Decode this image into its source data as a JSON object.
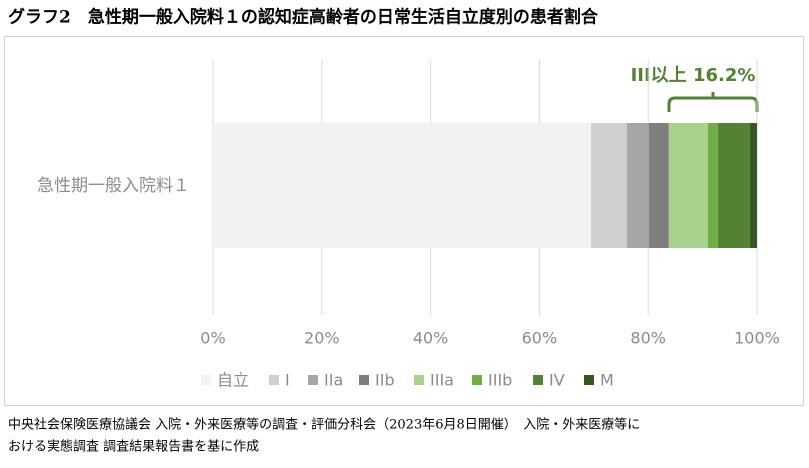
{
  "chart_data": {
    "type": "stacked-bar-horizontal",
    "title": "グラフ2　急性期一般入院料１の認知症高齢者の日常生活自立度別の患者割合",
    "categories": [
      "急性期一般入院料１"
    ],
    "series": [
      {
        "name": "自立",
        "color": "#f2f2f2",
        "values": [
          69.5
        ]
      },
      {
        "name": "I",
        "color": "#cfcfcf",
        "values": [
          6.6
        ]
      },
      {
        "name": "IIa",
        "color": "#a6a6a6",
        "values": [
          4.0
        ]
      },
      {
        "name": "IIb",
        "color": "#7f7f7f",
        "values": [
          3.7
        ]
      },
      {
        "name": "IIIa",
        "color": "#a9d18e",
        "values": [
          7.2
        ]
      },
      {
        "name": "IIIb",
        "color": "#70ad47",
        "values": [
          1.8
        ]
      },
      {
        "name": "IV",
        "color": "#548235",
        "values": [
          5.9
        ]
      },
      {
        "name": "M",
        "color": "#375623",
        "values": [
          1.3
        ]
      }
    ],
    "xlim": [
      0,
      100
    ],
    "xticks": [
      {
        "value": 0,
        "label": "0%"
      },
      {
        "value": 20,
        "label": "20%"
      },
      {
        "value": 40,
        "label": "40%"
      },
      {
        "value": 60,
        "label": "60%"
      },
      {
        "value": 80,
        "label": "80%"
      },
      {
        "value": 100,
        "label": "100%"
      }
    ],
    "grid": true,
    "annotation": "III以上 16.2%",
    "annotation_color": "#548235",
    "source": [
      "中央社会保険医療協議会 入院・外来医療等の調査・評価分科会（2023年6月8日開催）　入院・外来医療等に",
      "おける実態調査 調査結果報告書を基に作成"
    ]
  }
}
